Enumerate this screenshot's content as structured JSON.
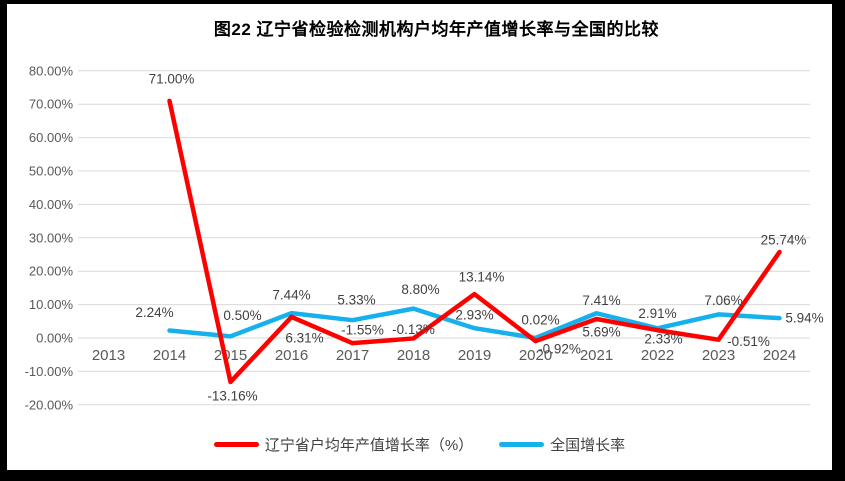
{
  "page": {
    "frame_color": "#000000",
    "canvas_color": "#FFFFFF"
  },
  "chart_data": {
    "type": "line",
    "title": "图22 辽宁省检验检测机构户均年产值增长率与全国的比较",
    "categories": [
      "2013",
      "2014",
      "2015",
      "2016",
      "2017",
      "2018",
      "2019",
      "2020",
      "2021",
      "2022",
      "2023",
      "2024"
    ],
    "series": [
      {
        "name": "辽宁省户均年产值增长率（%）",
        "color": "#FF0000",
        "values": [
          null,
          71.0,
          -13.16,
          6.31,
          -1.55,
          -0.13,
          13.14,
          -0.92,
          5.69,
          2.33,
          -0.51,
          25.74
        ]
      },
      {
        "name": "全国增长率",
        "color": "#16B1EC",
        "values": [
          null,
          2.24,
          0.5,
          7.44,
          5.33,
          8.8,
          2.93,
          0.02,
          7.41,
          2.91,
          7.06,
          5.94
        ]
      }
    ],
    "y_axis": {
      "min": -20,
      "max": 80,
      "step": 10,
      "tick_labels": [
        "80.00%",
        "70.00%",
        "60.00%",
        "50.00%",
        "40.00%",
        "30.00%",
        "20.00%",
        "10.00%",
        "0.00%",
        "-10.00%",
        "-20.00%"
      ]
    },
    "x_axis": {
      "tick_labels": [
        "2013",
        "2014",
        "2015",
        "2016",
        "2017",
        "2018",
        "2019",
        "2020",
        "2021",
        "2022",
        "2023",
        "2024"
      ]
    },
    "grid": true,
    "legend_position": "bottom",
    "data_label_format": "0.00%",
    "colors": {
      "gridline": "#D9D9D9",
      "axis_text": "#595959",
      "data_label_text": "#404040",
      "title_text": "#000000"
    },
    "label_offsets": {
      "series0": [
        null,
        [
          2,
          -22
        ],
        [
          2,
          14
        ],
        [
          13,
          21
        ],
        [
          10,
          -13
        ],
        [
          0,
          -9
        ],
        [
          7,
          -17
        ],
        [
          24,
          8
        ],
        [
          5,
          13
        ],
        [
          6,
          9
        ],
        [
          30,
          2
        ],
        [
          4,
          -12
        ]
      ],
      "series1": [
        null,
        [
          -15,
          -18
        ],
        [
          12,
          -21
        ],
        [
          0,
          -18
        ],
        [
          4,
          -20
        ],
        [
          7,
          -19
        ],
        [
          0,
          -13
        ],
        [
          5,
          -18
        ],
        [
          5,
          -13
        ],
        [
          0,
          -15
        ],
        [
          5,
          -14
        ],
        [
          25,
          0
        ]
      ]
    }
  }
}
